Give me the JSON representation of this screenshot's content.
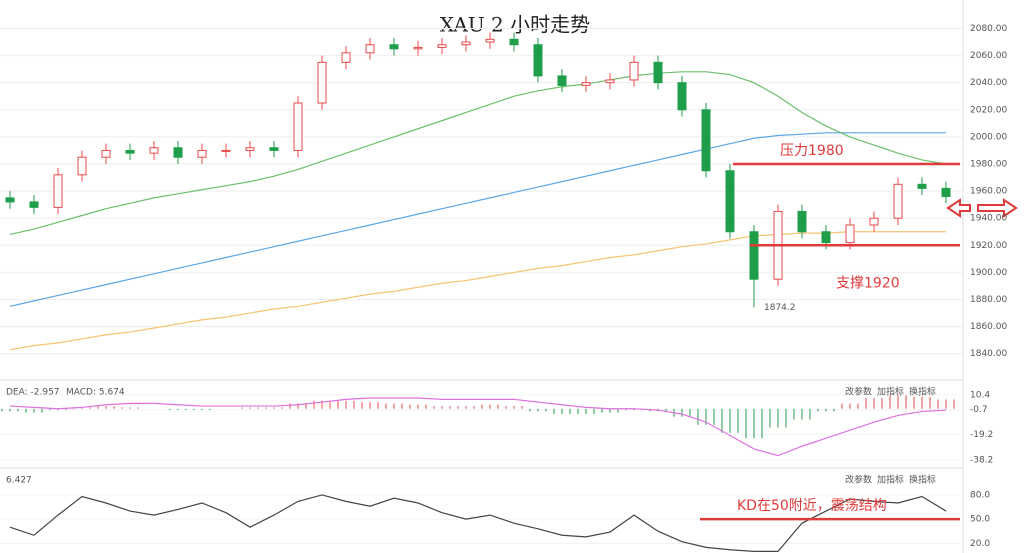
{
  "chart_data": [
    {
      "type": "candlestick",
      "title": "XAU 2 小时走势",
      "open": [
        1955,
        1952,
        1948,
        1972,
        1985,
        1990,
        1988,
        1992,
        1985,
        1990,
        1990,
        1992,
        1990,
        2025,
        2055,
        2062,
        2068,
        2065,
        2066,
        2068,
        2070,
        2072,
        2068,
        2045,
        2038,
        2040,
        2042,
        2055,
        2040,
        2020,
        1975,
        1930,
        1895,
        1945,
        1930,
        1922,
        1935,
        1940,
        1965,
        1962
      ],
      "high": [
        1960,
        1957,
        1977,
        1990,
        1995,
        1995,
        1997,
        1997,
        1995,
        1995,
        1997,
        1997,
        2030,
        2060,
        2067,
        2073,
        2073,
        2071,
        2073,
        2075,
        2077,
        2077,
        2073,
        2050,
        2045,
        2047,
        2060,
        2060,
        2045,
        2025,
        1980,
        1935,
        1950,
        1950,
        1935,
        1940,
        1945,
        1970,
        1970,
        1967
      ],
      "low": [
        1947,
        1943,
        1943,
        1967,
        1980,
        1983,
        1983,
        1980,
        1980,
        1985,
        1985,
        1985,
        1985,
        2020,
        2050,
        2057,
        2060,
        2060,
        2061,
        2063,
        2065,
        2063,
        2040,
        2033,
        2033,
        2035,
        2037,
        2035,
        2015,
        1970,
        1925,
        1874.2,
        1890,
        1925,
        1917,
        1917,
        1930,
        1935,
        1957,
        1951
      ],
      "close": [
        1952,
        1948,
        1972,
        1985,
        1990,
        1988,
        1992,
        1985,
        1990,
        1990,
        1992,
        1990,
        2025,
        2055,
        2062,
        2068,
        2065,
        2066,
        2068,
        2070,
        2072,
        2068,
        2045,
        2038,
        2040,
        2042,
        2055,
        2040,
        2020,
        1975,
        1930,
        1895,
        1945,
        1930,
        1922,
        1935,
        1940,
        1965,
        1962,
        1956
      ],
      "up_color": "#e84a4a",
      "down_color": "#1f9e4a",
      "series": [
        {
          "color": "#5aa6e6",
          "values": [
            1875,
            1879,
            1883,
            1887,
            1891,
            1895,
            1899,
            1903,
            1907,
            1911,
            1915,
            1919,
            1923,
            1927,
            1931,
            1935,
            1939,
            1943,
            1947,
            1951,
            1955,
            1959,
            1963,
            1967,
            1971,
            1975,
            1979,
            1983,
            1987,
            1991,
            1995,
            1999,
            2001,
            2002,
            2003,
            2003,
            2003,
            2003,
            2003,
            2003
          ]
        },
        {
          "color": "#f5c46e",
          "values": [
            1843,
            1846,
            1848,
            1851,
            1854,
            1856,
            1859,
            1862,
            1865,
            1867,
            1870,
            1873,
            1875,
            1878,
            1881,
            1884,
            1886,
            1889,
            1892,
            1894,
            1897,
            1900,
            1903,
            1905,
            1908,
            1911,
            1913,
            1916,
            1919,
            1921,
            1924,
            1927,
            1928,
            1929,
            1929,
            1930,
            1930,
            1930,
            1930,
            1930
          ]
        },
        {
          "color": "#6cbf6c",
          "values": [
            1928,
            1932,
            1937,
            1942,
            1947,
            1951,
            1955,
            1958,
            1961,
            1964,
            1967,
            1971,
            1976,
            1982,
            1988,
            1994,
            2000,
            2006,
            2012,
            2018,
            2024,
            2030,
            2034,
            2037,
            2039,
            2042,
            2045,
            2047,
            2048,
            2048,
            2046,
            2040,
            2030,
            2018,
            2008,
            2000,
            1994,
            1988,
            1983,
            1980
          ]
        }
      ],
      "levels": [
        {
          "value": 1980,
          "label": "压力1980"
        },
        {
          "value": 1920,
          "label": "支撑1920"
        }
      ],
      "low_label": "1874.2",
      "ylim": [
        1828,
        2101
      ],
      "yticks": [
        {
          "value": 2080,
          "label": "2080.00"
        },
        {
          "value": 2060,
          "label": "2060.00"
        },
        {
          "value": 2040,
          "label": "2040.00"
        },
        {
          "value": 2020,
          "label": "2020.00"
        },
        {
          "value": 2000,
          "label": "2000.00"
        },
        {
          "value": 1980,
          "label": "1980.00"
        },
        {
          "value": 1960,
          "label": "1960.00"
        },
        {
          "value": 1940,
          "label": "1940.00"
        },
        {
          "value": 1920,
          "label": "1920.00"
        },
        {
          "value": 1900,
          "label": "1900.00"
        },
        {
          "value": 1880,
          "label": "1880.00"
        },
        {
          "value": 1860,
          "label": "1860.00"
        },
        {
          "value": 1840,
          "label": "1840.00"
        }
      ],
      "grid": true
    },
    {
      "type": "bar",
      "header": [
        "DEA: -2.957",
        "MACD: 5.674"
      ],
      "tools": [
        "改参数",
        "加指标",
        "换指标"
      ],
      "values": [
        -2,
        -3,
        -1,
        1,
        2,
        1,
        0,
        -1,
        -1,
        0,
        1,
        1,
        4,
        6,
        6,
        5,
        4,
        3,
        2,
        2,
        3,
        2,
        -2,
        -4,
        -4,
        -3,
        -1,
        -2,
        -6,
        -12,
        -18,
        -22,
        -14,
        -8,
        -2,
        4,
        8,
        10,
        9,
        7
      ],
      "up_color": "#e84a4a",
      "down_color": "#1f9e4a",
      "series": [
        {
          "color": "#e070e0",
          "values": [
            2,
            1,
            0,
            1,
            3,
            4,
            4,
            3,
            2,
            2,
            2,
            2,
            3,
            5,
            7,
            8,
            8,
            8,
            7,
            7,
            7,
            7,
            5,
            3,
            1,
            0,
            0,
            -1,
            -4,
            -10,
            -20,
            -30,
            -35,
            -28,
            -22,
            -16,
            -10,
            -5,
            -2,
            -1
          ]
        }
      ],
      "ylim": [
        -42,
        14
      ],
      "yticks": [
        10.4,
        -0.7,
        -19.2,
        -38.2
      ]
    },
    {
      "type": "line",
      "header": [
        "6.427"
      ],
      "tools": [
        "改参数",
        "加指标",
        "换指标"
      ],
      "annotation": "KD在50附近，震荡结构",
      "series": [
        {
          "color": "#444444",
          "values": [
            40,
            30,
            55,
            78,
            70,
            60,
            55,
            62,
            70,
            58,
            40,
            55,
            72,
            80,
            72,
            66,
            76,
            70,
            58,
            50,
            55,
            45,
            38,
            30,
            28,
            34,
            55,
            35,
            22,
            15,
            12,
            10,
            10,
            45,
            60,
            75,
            72,
            70,
            78,
            60
          ]
        }
      ],
      "level": 50,
      "ylim": [
        8,
        101
      ],
      "yticks": [
        {
          "value": 80,
          "label": "80.0"
        },
        {
          "value": 50,
          "label": "50.0"
        },
        {
          "value": 20,
          "label": "20.0"
        }
      ]
    }
  ]
}
